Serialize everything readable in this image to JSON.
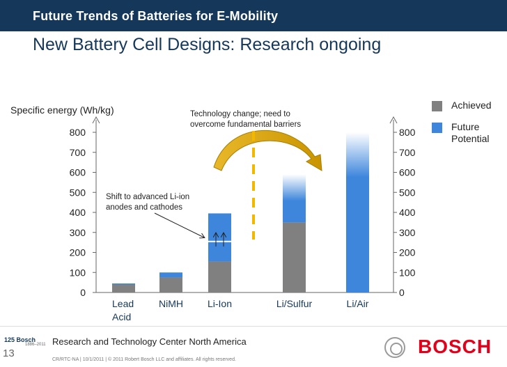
{
  "header": {
    "subtitle": "Future Trends of Batteries for E-Mobility",
    "title": "New Battery Cell Designs: Research ongoing"
  },
  "chart_data": {
    "type": "bar",
    "ylabel": "Specific energy (Wh/kg)",
    "ylim": [
      0,
      800
    ],
    "yticks": [
      0,
      100,
      200,
      300,
      400,
      500,
      600,
      700,
      800
    ],
    "categories": [
      [
        "Lead",
        "Acid"
      ],
      [
        "NiMH"
      ],
      [
        "Li-Ion"
      ],
      [
        "Li/Sulfur"
      ],
      [
        "Li/Air"
      ]
    ],
    "series": [
      {
        "name": "Achieved",
        "values": [
          40,
          75,
          155,
          350,
          0
        ],
        "color": "#808080"
      },
      {
        "name": "Future Potential",
        "values": [
          5,
          25,
          240,
          240,
          800
        ],
        "color": "#3d86dc"
      }
    ],
    "li_ion_split": 255,
    "legend_position": "top-right",
    "legend": [
      {
        "label": [
          "Achieved"
        ],
        "color": "#808080"
      },
      {
        "label": [
          "Future",
          "Potential"
        ],
        "color": "#3d86dc"
      }
    ],
    "annotations": {
      "technology_change": [
        "Technology change; need to",
        "overcome fundamental barriers"
      ],
      "shift": [
        "Shift to advanced Li-ion",
        "anodes and cathodes"
      ]
    },
    "grid": false
  },
  "footer": {
    "logo": "125 Bosch",
    "logo_years": "1886–2011",
    "page_number": "13",
    "org": "Research and Technology Center North America",
    "copyright": "CR/RTC-NA | 10/1/2011 | © 2011 Robert Bosch LLC and affiliates. All rights reserved.",
    "brand": "BOSCH"
  }
}
